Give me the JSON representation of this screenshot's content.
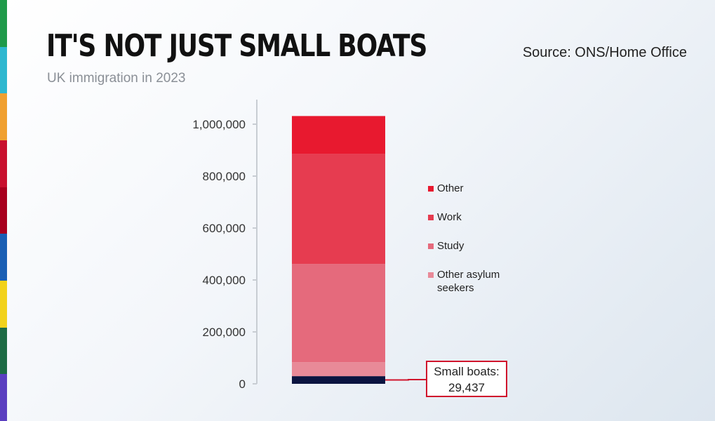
{
  "chart_data": {
    "type": "bar",
    "stacked": true,
    "title": "IT'S NOT JUST SMALL BOATS",
    "subtitle": "UK immigration in 2023",
    "source": "Source: ONS/Home Office",
    "categories": [
      "2023"
    ],
    "series": [
      {
        "name": "Small boats",
        "values": [
          29437
        ],
        "color": "#0b1440"
      },
      {
        "name": "Other asylum seekers",
        "values": [
          54000
        ],
        "color": "#e88a98"
      },
      {
        "name": "Study",
        "values": [
          378000
        ],
        "color": "#e56a7c"
      },
      {
        "name": "Work",
        "values": [
          424000
        ],
        "color": "#e63c50"
      },
      {
        "name": "Other",
        "values": [
          146000
        ],
        "color": "#e8192f"
      }
    ],
    "legend_order": [
      "Other",
      "Work",
      "Study",
      "Other asylum seekers"
    ],
    "legend_lines": {
      "Other asylum seekers": [
        "Other asylum",
        "seekers"
      ]
    },
    "legend_placement": "right",
    "ylim": [
      0,
      1000000
    ],
    "yticks": [
      0,
      200000,
      400000,
      600000,
      800000,
      1000000
    ],
    "ytick_labels": [
      "0",
      "200,000",
      "400,000",
      "600,000",
      "800,000",
      "1,000,000"
    ],
    "grid": false,
    "annotation": {
      "label": "Small boats:",
      "value": "29,437"
    }
  },
  "stripe_colors": [
    "#1f9a4a",
    "#2fb8d0",
    "#f0a030",
    "#c8102e",
    "#a8001e",
    "#1a5fb4",
    "#f2d21b",
    "#1d6b45",
    "#5a3fc0"
  ]
}
